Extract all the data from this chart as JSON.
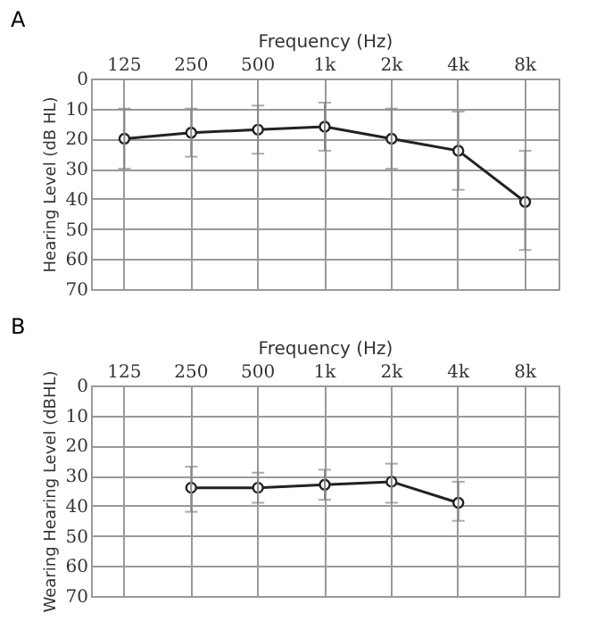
{
  "chart_data": [
    {
      "type": "line",
      "title": "A",
      "xlabel": "Frequency (Hz)",
      "ylabel": "Hearing Level (dB HL)",
      "categories": [
        "125",
        "250",
        "500",
        "1k",
        "2k",
        "4k",
        "8k"
      ],
      "series": [
        {
          "color": "#222222",
          "values": [
            20,
            18,
            17,
            16,
            20,
            24,
            41
          ],
          "errors": [
            10,
            8,
            8,
            8,
            10,
            [
              11,
              37
            ],
            [
              24,
              57
            ]
          ]
        }
      ],
      "ylim": [
        70,
        0
      ],
      "yticks": [
        0,
        10,
        20,
        30,
        40,
        50,
        60,
        70
      ],
      "grid": true,
      "marker": "circle",
      "line_style": "solid"
    },
    {
      "type": "line",
      "title": "B",
      "xlabel": "Frequency (Hz)",
      "ylabel": "Wearing Hearing Level (dBHL)",
      "categories": [
        "125",
        "250",
        "500",
        "1k",
        "2k",
        "4k",
        "8k"
      ],
      "series": [
        {
          "color": "#222222",
          "values": [
            null,
            34,
            34,
            33,
            32,
            39,
            null
          ],
          "errors": [
            null,
            [
              27,
              42
            ],
            5,
            5,
            [
              26,
              39
            ],
            [
              32,
              45
            ],
            null
          ]
        }
      ],
      "ylim": [
        70,
        0
      ],
      "yticks": [
        0,
        10,
        20,
        30,
        40,
        50,
        60,
        70
      ],
      "grid": true,
      "marker": "circle",
      "line_style": "solid"
    }
  ]
}
